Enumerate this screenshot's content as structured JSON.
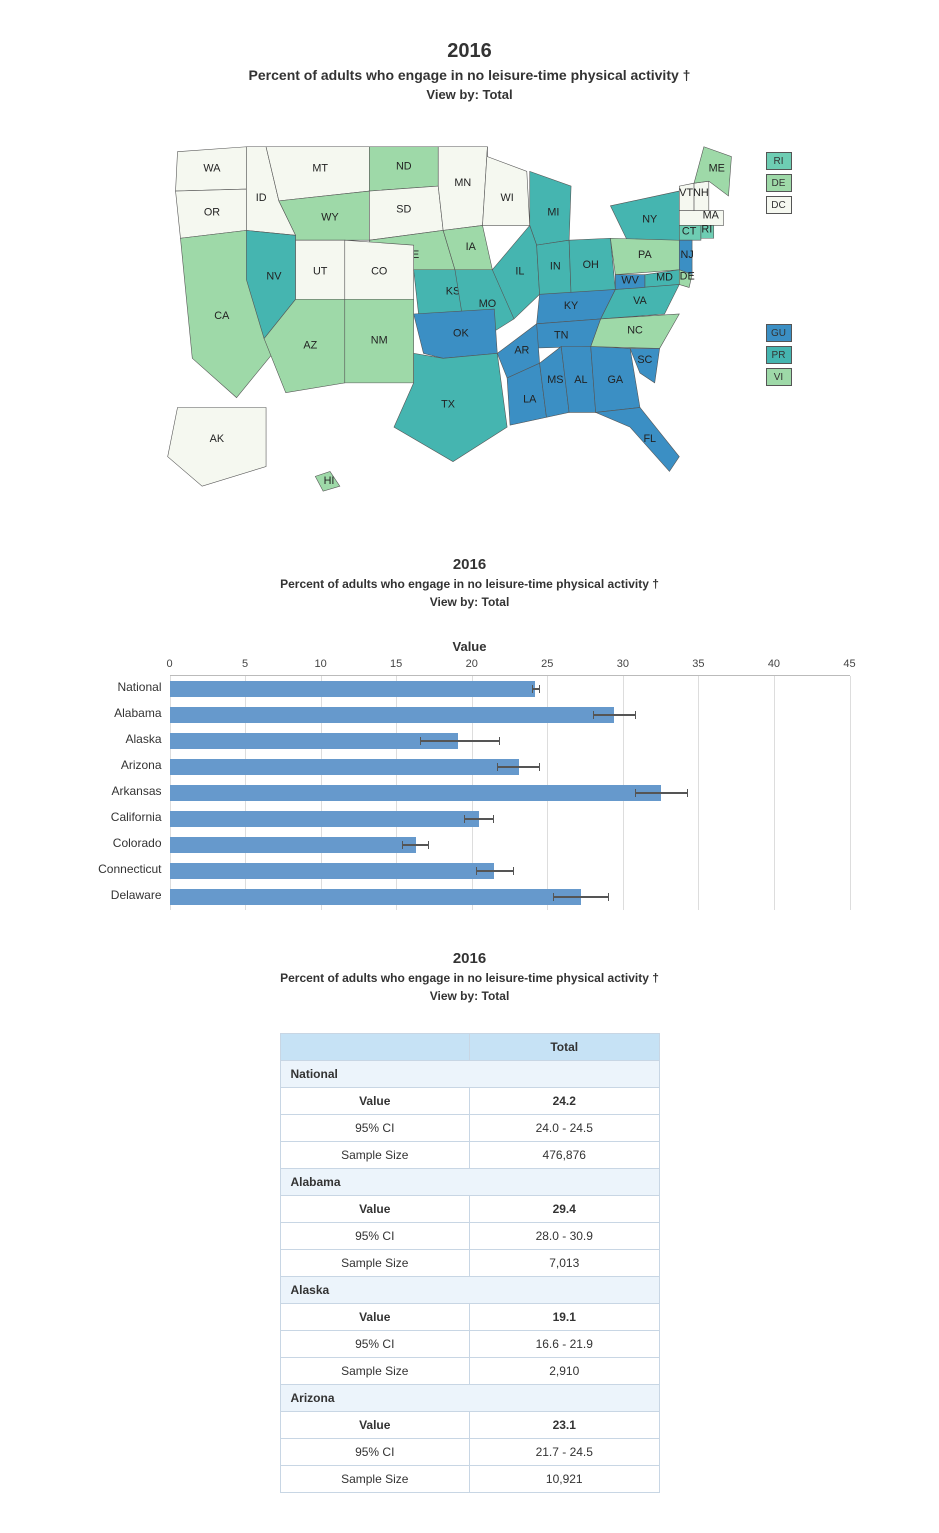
{
  "header": {
    "year": "2016",
    "subtitle": "Percent of adults who engage in no leisure-time physical activity †",
    "viewby": "View by: Total"
  },
  "palette": {
    "b1": "#f5f8f0",
    "b2": "#cce9c0",
    "b3": "#9ed9a8",
    "b4": "#6ecdb3",
    "b5": "#45b5b0",
    "b6": "#3b8fc4",
    "b7": "#2f6fab"
  },
  "map": {
    "states": {
      "WA": "b1",
      "OR": "b1",
      "ID": "b1",
      "MT": "b1",
      "ND": "b3",
      "SD": "b1",
      "MN": "b1",
      "WI": "b1",
      "MI": "b5",
      "NY": "b5",
      "VT": "b1",
      "NH": "b1",
      "ME": "b3",
      "MA": "b1",
      "RI": "b4",
      "CT": "b4",
      "WY": "b3",
      "NE": "b3",
      "IA": "b3",
      "IL": "b5",
      "IN": "b5",
      "OH": "b5",
      "PA": "b3",
      "NJ": "b6",
      "CA": "b3",
      "NV": "b5",
      "UT": "b1",
      "CO": "b1",
      "KS": "b5",
      "MO": "b5",
      "KY": "b6",
      "WV": "b6",
      "VA": "b5",
      "MD": "b5",
      "DE": "b3",
      "DC": "b1",
      "AZ": "b3",
      "NM": "b3",
      "OK": "b6",
      "AR": "b6",
      "TN": "b6",
      "NC": "b3",
      "SC": "b6",
      "TX": "b5",
      "LA": "b6",
      "MS": "b6",
      "AL": "b6",
      "GA": "b6",
      "FL": "b6",
      "AK": "b1",
      "HI": "b3",
      "GU": "b6",
      "PR": "b5",
      "VI": "b3"
    },
    "territories_top": [
      "RI",
      "DE",
      "DC"
    ],
    "territories_bottom": [
      "GU",
      "PR",
      "VI"
    ]
  },
  "chart": {
    "axis_title": "Value",
    "xmin": 0,
    "xmax": 45,
    "xtick_step": 5,
    "bar_color": "#6699cc",
    "err_color": "#555555",
    "rows": [
      {
        "label": "National",
        "value": 24.2,
        "lo": 24.0,
        "hi": 24.5
      },
      {
        "label": "Alabama",
        "value": 29.4,
        "lo": 28.0,
        "hi": 30.9
      },
      {
        "label": "Alaska",
        "value": 19.1,
        "lo": 16.6,
        "hi": 21.9
      },
      {
        "label": "Arizona",
        "value": 23.1,
        "lo": 21.7,
        "hi": 24.5
      },
      {
        "label": "Arkansas",
        "value": 32.5,
        "lo": 30.8,
        "hi": 34.3
      },
      {
        "label": "California",
        "value": 20.5,
        "lo": 19.5,
        "hi": 21.5
      },
      {
        "label": "Colorado",
        "value": 16.3,
        "lo": 15.4,
        "hi": 17.2
      },
      {
        "label": "Connecticut",
        "value": 21.5,
        "lo": 20.3,
        "hi": 22.8
      },
      {
        "label": "Delaware",
        "value": 27.2,
        "lo": 25.4,
        "hi": 29.1
      }
    ]
  },
  "table": {
    "col_header": "Total",
    "row_labels": {
      "value": "Value",
      "ci": "95% CI",
      "n": "Sample Size"
    },
    "groups": [
      {
        "name": "National",
        "value": "24.2",
        "ci": "24.0 - 24.5",
        "n": "476,876"
      },
      {
        "name": "Alabama",
        "value": "29.4",
        "ci": "28.0 - 30.9",
        "n": "7,013"
      },
      {
        "name": "Alaska",
        "value": "19.1",
        "ci": "16.6 - 21.9",
        "n": "2,910"
      },
      {
        "name": "Arizona",
        "value": "23.1",
        "ci": "21.7 - 24.5",
        "n": "10,921"
      }
    ]
  }
}
